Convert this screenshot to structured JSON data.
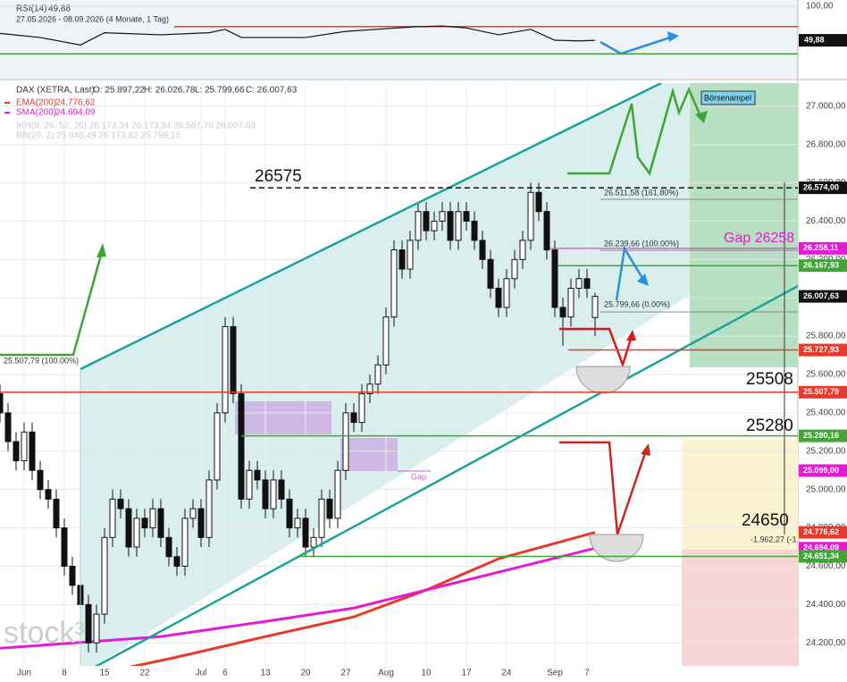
{
  "chart_data": {
    "type": "candlestick",
    "categories": [
      null,
      null,
      null,
      "Jun",
      null,
      null,
      null,
      null,
      "8",
      null,
      null,
      null,
      null,
      "15",
      null,
      null,
      null,
      null,
      "22",
      null,
      null,
      null,
      null,
      null,
      null,
      "Jul",
      null,
      null,
      "6",
      null,
      null,
      null,
      null,
      "13",
      null,
      null,
      null,
      null,
      "20",
      null,
      null,
      null,
      null,
      "27",
      null,
      null,
      null,
      null,
      "Aug",
      null,
      null,
      null,
      null,
      "10",
      null,
      null,
      null,
      null,
      "17",
      null,
      null,
      null,
      null,
      "24",
      null,
      null,
      null,
      null,
      null,
      "Sep",
      null,
      null,
      null,
      "7",
      null
    ],
    "series": [
      {
        "name": "DAX (XETRA, Last)",
        "open": [
          25500,
          25400,
          25250,
          25150,
          25300,
          25100,
          25000,
          24950,
          24800,
          24600,
          24500,
          24400,
          24200,
          24350,
          24750,
          24950,
          24900,
          24700,
          24850,
          24800,
          24900,
          24750,
          24650,
          24600,
          24850,
          24900,
          24750,
          25050,
          25400,
          25850,
          25500,
          24950,
          25100,
          25050,
          24900,
          25050,
          24950,
          24800,
          24850,
          24700,
          24750,
          24950,
          24850,
          25100,
          25400,
          25350,
          25500,
          25550,
          25650,
          25900,
          26250,
          26150,
          26300,
          26450,
          26350,
          26400,
          26450,
          26300,
          26450,
          26400,
          26300,
          26200,
          26050,
          25950,
          26100,
          26200,
          26300,
          26550,
          26450,
          26250,
          25950,
          25900,
          26050,
          26100,
          25897.22
        ],
        "high": [
          25550,
          25450,
          25300,
          25350,
          25350,
          25150,
          25050,
          25000,
          24850,
          24650,
          24550,
          24450,
          24400,
          24800,
          25000,
          25000,
          24950,
          24900,
          24900,
          24950,
          24950,
          24800,
          24700,
          24900,
          24950,
          24950,
          25100,
          25450,
          25900,
          25900,
          25550,
          25150,
          25150,
          25100,
          25100,
          25100,
          25000,
          24900,
          24900,
          24800,
          25000,
          25000,
          25150,
          25450,
          25450,
          25550,
          25600,
          25700,
          25950,
          26300,
          26300,
          26350,
          26500,
          26500,
          26450,
          26500,
          26500,
          26500,
          26500,
          26450,
          26350,
          26250,
          26100,
          26150,
          26250,
          26350,
          26600,
          26600,
          26500,
          26300,
          26000,
          26100,
          26150,
          26150,
          26026.78
        ],
        "low": [
          25350,
          25200,
          25100,
          25100,
          25050,
          24950,
          24900,
          24750,
          24550,
          24450,
          24350,
          24150,
          24150,
          24300,
          24700,
          24850,
          24650,
          24650,
          24750,
          24750,
          24700,
          24600,
          24550,
          24550,
          24800,
          24700,
          24700,
          25000,
          25350,
          25450,
          24900,
          24900,
          25000,
          24850,
          24850,
          24900,
          24750,
          24750,
          24650,
          24650,
          24700,
          24800,
          24800,
          25050,
          25300,
          25300,
          25450,
          25500,
          25600,
          25850,
          26100,
          26100,
          26250,
          26300,
          26300,
          26350,
          26250,
          26250,
          26350,
          26250,
          26150,
          26000,
          25900,
          25900,
          26050,
          26150,
          26250,
          26400,
          26200,
          25900,
          25750,
          25850,
          26000,
          26000,
          25799.66
        ],
        "close": [
          25400,
          25250,
          25150,
          25300,
          25100,
          25000,
          24950,
          24800,
          24600,
          24500,
          24400,
          24200,
          24350,
          24750,
          24950,
          24900,
          24700,
          24850,
          24800,
          24900,
          24750,
          24650,
          24600,
          24850,
          24900,
          24750,
          25050,
          25400,
          25850,
          25500,
          24950,
          25100,
          25050,
          24900,
          25050,
          24950,
          24800,
          24850,
          24700,
          24750,
          24950,
          24850,
          25100,
          25400,
          25350,
          25500,
          25550,
          25650,
          25900,
          26250,
          26150,
          26300,
          26450,
          26350,
          26400,
          26450,
          26300,
          26450,
          26400,
          26300,
          26200,
          26050,
          25950,
          26100,
          26200,
          26300,
          26550,
          26450,
          26250,
          25950,
          25900,
          26050,
          26100,
          26050,
          26007.63
        ]
      }
    ],
    "ohlc_labels": [
      "O: 25.897,22",
      "H: 26.026,78",
      "L: 25.799,66",
      "C: 26.007,63"
    ],
    "ylim": [
      24080,
      27120
    ],
    "yticks": [
      {
        "value": 27000,
        "label": "27.000,00"
      },
      {
        "value": 26800,
        "label": "26.800,00"
      },
      {
        "value": 26600,
        "label": "26.600,00"
      },
      {
        "value": 26400,
        "label": "26.400,00"
      },
      {
        "value": 26200,
        "label": "26.200,00"
      },
      {
        "value": 26000,
        "label": "26.000,00"
      },
      {
        "value": 25800,
        "label": "25.800,00"
      },
      {
        "value": 25600,
        "label": "25.600,00"
      },
      {
        "value": 25400,
        "label": "25.400,00"
      },
      {
        "value": 25200,
        "label": "25.200,00"
      },
      {
        "value": 25000,
        "label": "25.000,00"
      },
      {
        "value": 24800,
        "label": "24.800,00"
      },
      {
        "value": 24600,
        "label": "24.600,00"
      },
      {
        "value": 24400,
        "label": "24.400,00"
      },
      {
        "value": 24200,
        "label": "24.200,00"
      }
    ],
    "grid": true,
    "overlays": [
      {
        "name": "EMA(200)",
        "value_label": "24.776,62",
        "color": "#e8392a",
        "x": [
          13,
          22,
          33,
          44,
          53,
          62,
          74
        ],
        "values": [
          24046,
          24126,
          24233,
          24336,
          24476,
          24639,
          24776.62
        ]
      },
      {
        "name": "SMA(200)",
        "value_label": "24.694,09",
        "color": "#e619d6",
        "x": [
          0,
          20,
          33,
          44,
          53,
          62,
          74
        ],
        "values": [
          24172,
          24233,
          24312,
          24382,
          24476,
          24569,
          24694.09
        ]
      }
    ],
    "faded_legend": [
      "IKH(9, 26, 52, 26)  26.173,34  26.173,34  26.587,76  26.007,63",
      "BB(20, 2)  25.648,49  26.173,82  25.799,15"
    ],
    "levels": [
      {
        "value": 26574,
        "label": "26.574,00",
        "color": "#111111"
      },
      {
        "value": 26258.11,
        "label": "26.258,11",
        "color": "#e619d6"
      },
      {
        "value": 26167.93,
        "label": "26.167,93",
        "color": "#3fa535"
      },
      {
        "value": 26007.63,
        "label": "26.007,63",
        "color": "#111111"
      },
      {
        "value": 25727.93,
        "label": "25.727,93",
        "color": "#e8392a"
      },
      {
        "value": 25507.79,
        "label": "25.507,79",
        "color": "#e8392a"
      },
      {
        "value": 25280.16,
        "label": "25.280,16",
        "color": "#3fa535"
      },
      {
        "value": 25099,
        "label": "25.099,00",
        "color": "#e619d6"
      },
      {
        "value": 24776.62,
        "label": "24.776,62",
        "color": "#e8392a"
      },
      {
        "value": 24694.09,
        "label": "24.694,09",
        "color": "#e619d6"
      },
      {
        "value": 24651.34,
        "label": "24.651,34",
        "color": "#3fa535"
      }
    ],
    "annotations": [
      "26575",
      "25508",
      "25280",
      "24650",
      "Gap 26258",
      "Gap",
      "Börsenampel",
      "26.511,58 (161.80%)",
      "26.239,66 (100.00%)",
      "25.799,66 (0.00%)",
      "25.507,79 (100.00%)",
      "-1.962,27 (-1."
    ],
    "watermark": "stock³",
    "rsi": {
      "name": "RSI(14)",
      "value_label": "49,88",
      "range_label": "27.05.2026 - 08.09.2026  (4 Monate, 1 Tag)",
      "x": [
        0,
        5,
        10,
        13,
        20,
        26,
        28,
        30,
        38,
        43,
        48,
        52,
        55,
        58,
        62,
        66,
        69,
        72,
        74
      ],
      "values": [
        60,
        54,
        43,
        61,
        58,
        61,
        66,
        54,
        54,
        63,
        67,
        70,
        71,
        68,
        58,
        66,
        50,
        49,
        49.88
      ],
      "ylim": [
        0,
        100
      ],
      "yticks": [
        {
          "value": 100,
          "label": "100,00"
        }
      ],
      "upper": 70,
      "lower": 30
    }
  }
}
